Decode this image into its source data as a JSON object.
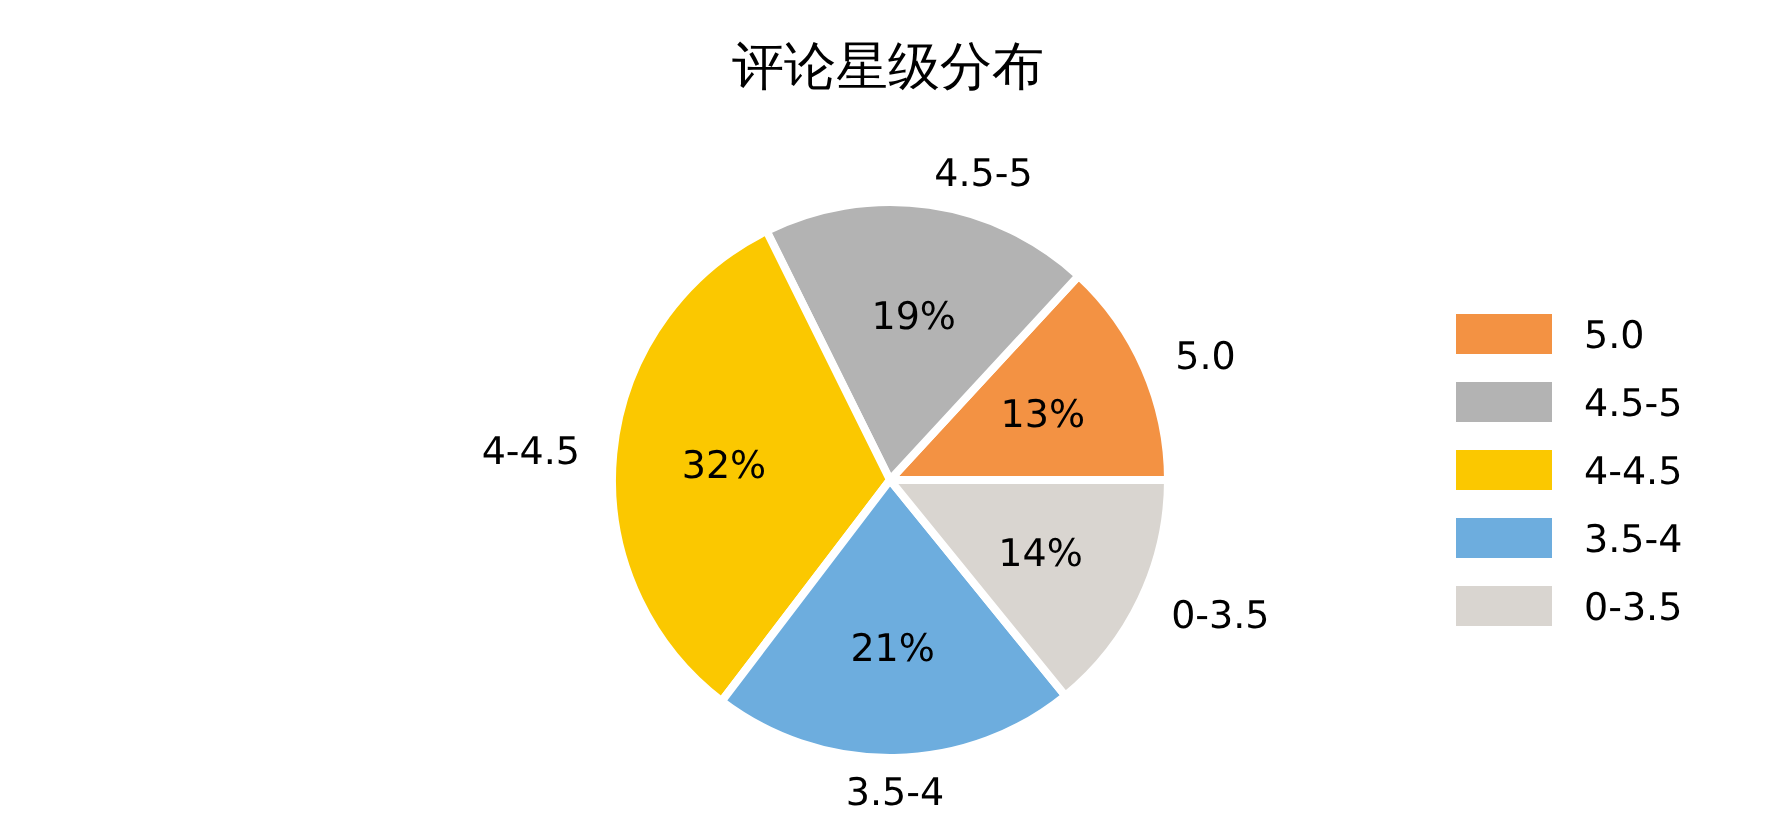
{
  "chart_data": {
    "type": "pie",
    "title": "评论星级分布",
    "categories": [
      "5.0",
      "4.5-5",
      "4-4.5",
      "3.5-4",
      "0-3.5"
    ],
    "values": [
      13,
      19,
      32,
      21,
      14
    ],
    "value_labels": [
      "13%",
      "19%",
      "32%",
      "21%",
      "14%"
    ],
    "colors": [
      "#f39243",
      "#b3b3b3",
      "#fbc800",
      "#6dadde",
      "#d9d5d0"
    ],
    "legend": "right"
  }
}
